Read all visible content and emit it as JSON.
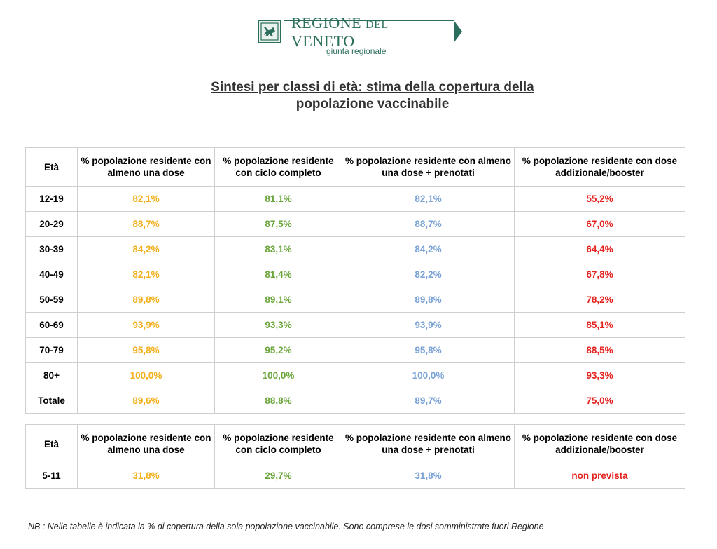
{
  "header": {
    "brand_main": "REGIONE",
    "brand_small": "DEL",
    "brand_end": "VENETO",
    "brand_sub": "giunta regionale",
    "logo_icon": "winged-lion-crest-icon",
    "brand_color": "#2b6e5c"
  },
  "title_line1": "Sintesi per classi di età: stima della copertura della",
  "title_line2": "popolazione vaccinabile",
  "columns": {
    "age": "Età",
    "a": "% popolazione residente con almeno una dose",
    "b": "% popolazione residente con ciclo completo",
    "c": "% popolazione residente con almeno una dose + prenotati",
    "d": "% popolazione residente con dose addizionale/booster"
  },
  "colors": {
    "a": "#f2b01e",
    "b": "#6aa53a",
    "c": "#7ba3d6",
    "d": "#e4231f"
  },
  "table1": {
    "rows": [
      {
        "age": "12-19",
        "a": "82,1%",
        "b": "81,1%",
        "c": "82,1%",
        "d": "55,2%"
      },
      {
        "age": "20-29",
        "a": "88,7%",
        "b": "87,5%",
        "c": "88,7%",
        "d": "67,0%"
      },
      {
        "age": "30-39",
        "a": "84,2%",
        "b": "83,1%",
        "c": "84,2%",
        "d": "64,4%"
      },
      {
        "age": "40-49",
        "a": "82,1%",
        "b": "81,4%",
        "c": "82,2%",
        "d": "67,8%"
      },
      {
        "age": "50-59",
        "a": "89,8%",
        "b": "89,1%",
        "c": "89,8%",
        "d": "78,2%"
      },
      {
        "age": "60-69",
        "a": "93,9%",
        "b": "93,3%",
        "c": "93,9%",
        "d": "85,1%"
      },
      {
        "age": "70-79",
        "a": "95,8%",
        "b": "95,2%",
        "c": "95,8%",
        "d": "88,5%"
      },
      {
        "age": "80+",
        "a": "100,0%",
        "b": "100,0%",
        "c": "100,0%",
        "d": "93,3%"
      },
      {
        "age": "Totale",
        "a": "89,6%",
        "b": "88,8%",
        "c": "89,7%",
        "d": "75,0%"
      }
    ]
  },
  "table2": {
    "rows": [
      {
        "age": "5-11",
        "a": "31,8%",
        "b": "29,7%",
        "c": "31,8%",
        "d": "non prevista"
      }
    ]
  },
  "note": "NB : Nelle tabelle è indicata la % di copertura della sola popolazione vaccinabile. Sono comprese le dosi somministrate fuori Regione"
}
